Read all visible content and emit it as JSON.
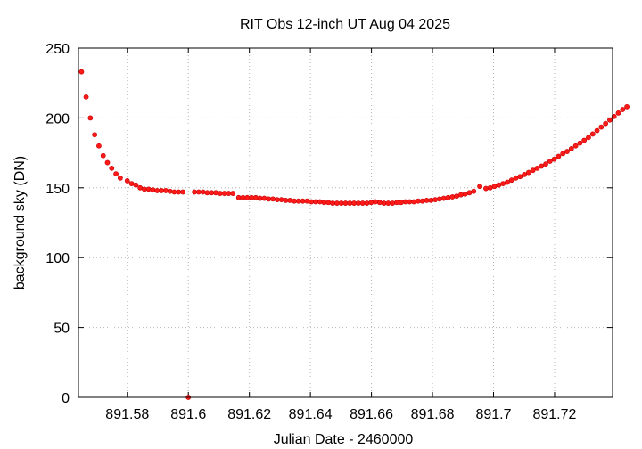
{
  "chart_data": {
    "type": "scatter",
    "title": "RIT Obs 12-inch UT Aug 04 2025",
    "xlabel": "Julian Date - 2460000",
    "ylabel": "background sky (DN)",
    "xlim": [
      891.564,
      891.739
    ],
    "ylim": [
      0,
      250
    ],
    "grid": true,
    "legend": "none",
    "marker_color": "#ff2020",
    "x_ticks": [
      891.58,
      891.6,
      891.62,
      891.64,
      891.66,
      891.68,
      891.7,
      891.72
    ],
    "x_tick_labels": [
      "891.58",
      "891.6",
      "891.62",
      "891.64",
      "891.66",
      "891.68",
      "891.7",
      "891.72"
    ],
    "y_ticks": [
      0,
      50,
      100,
      150,
      200,
      250
    ],
    "y_tick_labels": [
      "0",
      "50",
      "100",
      "150",
      "200",
      "250"
    ],
    "series": [
      {
        "points": [
          [
            891.565,
            233
          ],
          [
            891.5665,
            215
          ],
          [
            891.5679,
            200
          ],
          [
            891.5693,
            188
          ],
          [
            891.5707,
            180
          ],
          [
            891.5721,
            173
          ],
          [
            891.5735,
            168
          ],
          [
            891.5749,
            164
          ],
          [
            891.5763,
            160
          ],
          [
            891.5777,
            157
          ],
          [
            891.58,
            155
          ],
          [
            891.5814,
            153
          ],
          [
            891.5828,
            152
          ],
          [
            891.5842,
            150
          ],
          [
            891.5856,
            149
          ],
          [
            891.587,
            149
          ],
          [
            891.5884,
            148.5
          ],
          [
            891.5898,
            148
          ],
          [
            891.5912,
            148
          ],
          [
            891.5926,
            148
          ],
          [
            891.594,
            147.5
          ],
          [
            891.5954,
            147
          ],
          [
            891.5968,
            147
          ],
          [
            891.5982,
            147
          ],
          [
            891.6,
            0
          ],
          [
            891.602,
            147
          ],
          [
            891.6034,
            147
          ],
          [
            891.6048,
            147
          ],
          [
            891.6062,
            146.5
          ],
          [
            891.6076,
            146.5
          ],
          [
            891.609,
            146.5
          ],
          [
            891.6104,
            146
          ],
          [
            891.6118,
            146
          ],
          [
            891.6132,
            146
          ],
          [
            891.6146,
            146
          ],
          [
            891.6165,
            143
          ],
          [
            891.6179,
            143
          ],
          [
            891.6193,
            143
          ],
          [
            891.6207,
            143
          ],
          [
            891.6221,
            143
          ],
          [
            891.6235,
            142.5
          ],
          [
            891.6249,
            142.5
          ],
          [
            891.6263,
            142
          ],
          [
            891.6277,
            142
          ],
          [
            891.6291,
            141.5
          ],
          [
            891.6305,
            141.5
          ],
          [
            891.6319,
            141
          ],
          [
            891.6333,
            141
          ],
          [
            891.6347,
            140.5
          ],
          [
            891.6361,
            140.5
          ],
          [
            891.6375,
            140.5
          ],
          [
            891.6389,
            140.5
          ],
          [
            891.6403,
            140
          ],
          [
            891.6417,
            140
          ],
          [
            891.6431,
            140
          ],
          [
            891.6445,
            139.5
          ],
          [
            891.6459,
            139.5
          ],
          [
            891.6473,
            139
          ],
          [
            891.6487,
            139
          ],
          [
            891.6501,
            139
          ],
          [
            891.6515,
            139
          ],
          [
            891.6529,
            139
          ],
          [
            891.6543,
            139
          ],
          [
            891.6557,
            139
          ],
          [
            891.6571,
            139
          ],
          [
            891.6585,
            139
          ],
          [
            891.6599,
            139.5
          ],
          [
            891.6613,
            140
          ],
          [
            891.6627,
            139.5
          ],
          [
            891.6641,
            139
          ],
          [
            891.6655,
            139
          ],
          [
            891.6669,
            139
          ],
          [
            891.6683,
            139.5
          ],
          [
            891.6697,
            139.5
          ],
          [
            891.6711,
            140
          ],
          [
            891.6725,
            140
          ],
          [
            891.6739,
            140
          ],
          [
            891.6753,
            140.5
          ],
          [
            891.6767,
            140.5
          ],
          [
            891.6781,
            141
          ],
          [
            891.6795,
            141
          ],
          [
            891.6809,
            141.5
          ],
          [
            891.6823,
            142
          ],
          [
            891.6837,
            142.5
          ],
          [
            891.6851,
            143
          ],
          [
            891.6865,
            143.5
          ],
          [
            891.6879,
            144
          ],
          [
            891.6893,
            145
          ],
          [
            891.6907,
            145.5
          ],
          [
            891.6921,
            146.5
          ],
          [
            891.6935,
            147.5
          ],
          [
            891.6955,
            151
          ],
          [
            891.6975,
            149.5
          ],
          [
            891.6989,
            150
          ],
          [
            891.7003,
            151
          ],
          [
            891.7017,
            152
          ],
          [
            891.7031,
            153
          ],
          [
            891.7045,
            154
          ],
          [
            891.7059,
            155.5
          ],
          [
            891.7073,
            157
          ],
          [
            891.7087,
            158
          ],
          [
            891.7101,
            159.5
          ],
          [
            891.7115,
            161
          ],
          [
            891.7129,
            162.5
          ],
          [
            891.7143,
            164
          ],
          [
            891.7157,
            165.5
          ],
          [
            891.7171,
            167
          ],
          [
            891.7185,
            169
          ],
          [
            891.7199,
            170.5
          ],
          [
            891.7213,
            172.5
          ],
          [
            891.7227,
            174.5
          ],
          [
            891.7241,
            176
          ],
          [
            891.7255,
            178
          ],
          [
            891.7269,
            180
          ],
          [
            891.7283,
            182
          ],
          [
            891.7297,
            184
          ],
          [
            891.7311,
            186
          ],
          [
            891.7325,
            188.5
          ],
          [
            891.7339,
            191
          ],
          [
            891.7353,
            193.5
          ],
          [
            891.7367,
            196
          ],
          [
            891.7381,
            198.5
          ],
          [
            891.7395,
            201
          ],
          [
            891.7409,
            203.5
          ],
          [
            891.7423,
            206
          ],
          [
            891.7437,
            208
          ]
        ]
      }
    ]
  }
}
